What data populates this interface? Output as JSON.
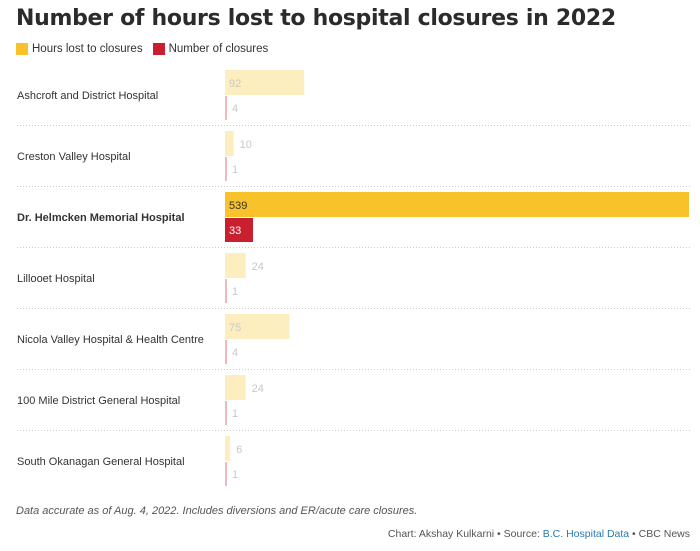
{
  "title": "Number of hours lost to hospital closures in 2022",
  "legend": [
    {
      "label": "Hours lost to closures",
      "color": "#f7c22a"
    },
    {
      "label": "Number of closures",
      "color": "#c8202f"
    }
  ],
  "chart_data": {
    "type": "bar",
    "orientation": "horizontal",
    "title": "Number of hours lost to hospital closures in 2022",
    "categories": [
      "Ashcroft and District Hospital",
      "Creston Valley Hospital",
      "Dr. Helmcken Memorial Hospital",
      "Lillooet Hospital",
      "Nicola Valley Hospital & Health Centre",
      "100 Mile District General Hospital",
      "South Okanagan General Hospital"
    ],
    "highlight_category": "Dr. Helmcken Memorial Hospital",
    "series": [
      {
        "name": "Hours lost to closures",
        "values": [
          92,
          10,
          539,
          24,
          75,
          24,
          6
        ],
        "color": "#f7c22a",
        "muted_color": "#fdeebf"
      },
      {
        "name": "Number of closures",
        "values": [
          4,
          1,
          33,
          1,
          4,
          1,
          1
        ],
        "color": "#c8202f",
        "muted_color": "#f2b6bb"
      }
    ],
    "xlim": [
      0,
      539
    ],
    "gridlines": false
  },
  "note": "Data accurate as of Aug. 4, 2022. Includes diversions and ER/acute care closures.",
  "credit": {
    "prefix": "Chart: Akshay Kulkarni • Source: ",
    "source_link": "B.C. Hospital Data",
    "suffix": " • CBC News"
  }
}
